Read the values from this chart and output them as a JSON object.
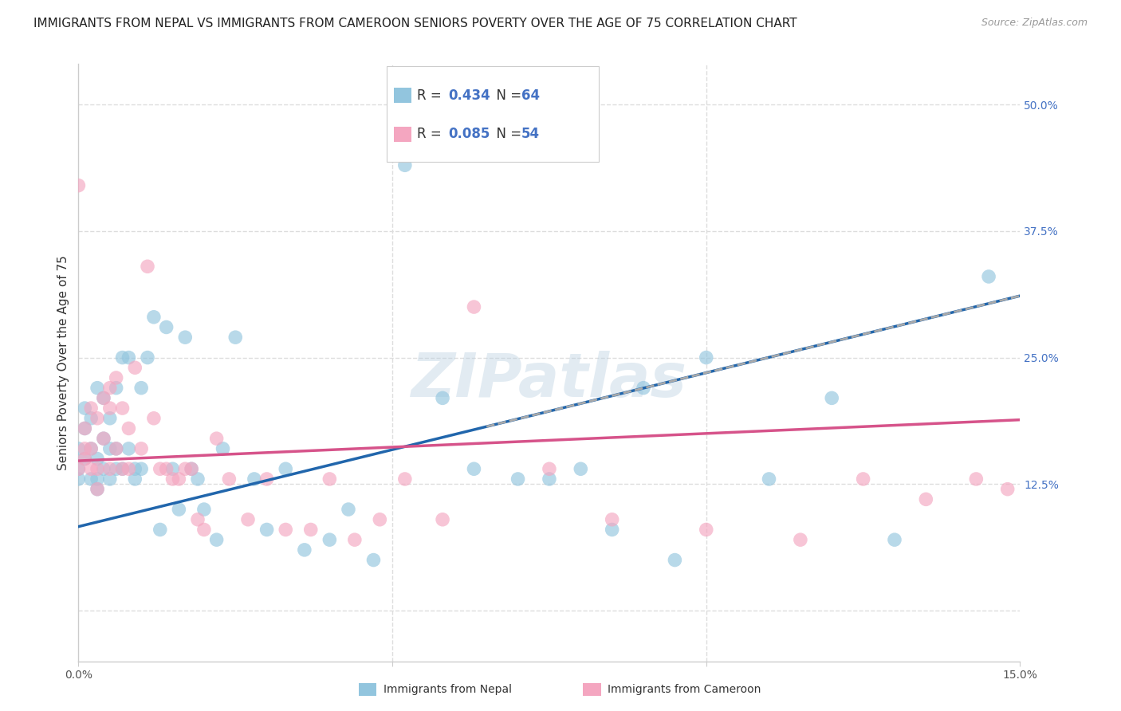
{
  "title": "IMMIGRANTS FROM NEPAL VS IMMIGRANTS FROM CAMEROON SENIORS POVERTY OVER THE AGE OF 75 CORRELATION CHART",
  "source": "Source: ZipAtlas.com",
  "ylabel": "Seniors Poverty Over the Age of 75",
  "xlim": [
    0.0,
    0.15
  ],
  "ylim": [
    -0.05,
    0.54
  ],
  "yticks_right": [
    0.125,
    0.25,
    0.375,
    0.5
  ],
  "ytick_right_labels": [
    "12.5%",
    "25.0%",
    "37.5%",
    "50.0%"
  ],
  "nepal_R": 0.434,
  "nepal_N": 64,
  "cameroon_R": 0.085,
  "cameroon_N": 54,
  "nepal_color": "#92c5de",
  "cameroon_color": "#f4a6c0",
  "nepal_line_color": "#2166ac",
  "cameroon_line_color": "#d6538a",
  "nepal_line_b": 0.083,
  "nepal_line_m": 1.52,
  "cameroon_line_b": 0.148,
  "cameroon_line_m": 0.27,
  "nepal_x": [
    0.0,
    0.0,
    0.0,
    0.001,
    0.001,
    0.001,
    0.002,
    0.002,
    0.002,
    0.003,
    0.003,
    0.003,
    0.003,
    0.004,
    0.004,
    0.004,
    0.005,
    0.005,
    0.005,
    0.006,
    0.006,
    0.006,
    0.007,
    0.007,
    0.008,
    0.008,
    0.009,
    0.009,
    0.01,
    0.01,
    0.011,
    0.012,
    0.013,
    0.014,
    0.015,
    0.016,
    0.017,
    0.018,
    0.019,
    0.02,
    0.022,
    0.023,
    0.025,
    0.028,
    0.03,
    0.033,
    0.036,
    0.04,
    0.043,
    0.047,
    0.052,
    0.058,
    0.063,
    0.07,
    0.075,
    0.08,
    0.085,
    0.09,
    0.095,
    0.1,
    0.11,
    0.12,
    0.13,
    0.145
  ],
  "nepal_y": [
    0.14,
    0.16,
    0.13,
    0.15,
    0.18,
    0.2,
    0.13,
    0.16,
    0.19,
    0.13,
    0.12,
    0.15,
    0.22,
    0.14,
    0.17,
    0.21,
    0.13,
    0.16,
    0.19,
    0.14,
    0.22,
    0.16,
    0.25,
    0.14,
    0.16,
    0.25,
    0.14,
    0.13,
    0.22,
    0.14,
    0.25,
    0.29,
    0.08,
    0.28,
    0.14,
    0.1,
    0.27,
    0.14,
    0.13,
    0.1,
    0.07,
    0.16,
    0.27,
    0.13,
    0.08,
    0.14,
    0.06,
    0.07,
    0.1,
    0.05,
    0.44,
    0.21,
    0.14,
    0.13,
    0.13,
    0.14,
    0.08,
    0.22,
    0.05,
    0.25,
    0.13,
    0.21,
    0.07,
    0.33
  ],
  "cameroon_x": [
    0.0,
    0.0,
    0.001,
    0.001,
    0.001,
    0.002,
    0.002,
    0.002,
    0.003,
    0.003,
    0.003,
    0.004,
    0.004,
    0.005,
    0.005,
    0.005,
    0.006,
    0.006,
    0.007,
    0.007,
    0.008,
    0.008,
    0.009,
    0.01,
    0.011,
    0.012,
    0.013,
    0.014,
    0.015,
    0.016,
    0.017,
    0.018,
    0.019,
    0.02,
    0.022,
    0.024,
    0.027,
    0.03,
    0.033,
    0.037,
    0.04,
    0.044,
    0.048,
    0.052,
    0.058,
    0.063,
    0.075,
    0.085,
    0.1,
    0.115,
    0.125,
    0.135,
    0.143,
    0.148
  ],
  "cameroon_y": [
    0.14,
    0.42,
    0.15,
    0.16,
    0.18,
    0.14,
    0.16,
    0.2,
    0.14,
    0.19,
    0.12,
    0.17,
    0.21,
    0.14,
    0.2,
    0.22,
    0.23,
    0.16,
    0.14,
    0.2,
    0.18,
    0.14,
    0.24,
    0.16,
    0.34,
    0.19,
    0.14,
    0.14,
    0.13,
    0.13,
    0.14,
    0.14,
    0.09,
    0.08,
    0.17,
    0.13,
    0.09,
    0.13,
    0.08,
    0.08,
    0.13,
    0.07,
    0.09,
    0.13,
    0.09,
    0.3,
    0.14,
    0.09,
    0.08,
    0.07,
    0.13,
    0.11,
    0.13,
    0.12
  ],
  "watermark": "ZIPatlas",
  "background_color": "#ffffff",
  "grid_color": "#dddddd",
  "title_fontsize": 11,
  "tick_fontsize": 10,
  "label_fontsize": 11
}
